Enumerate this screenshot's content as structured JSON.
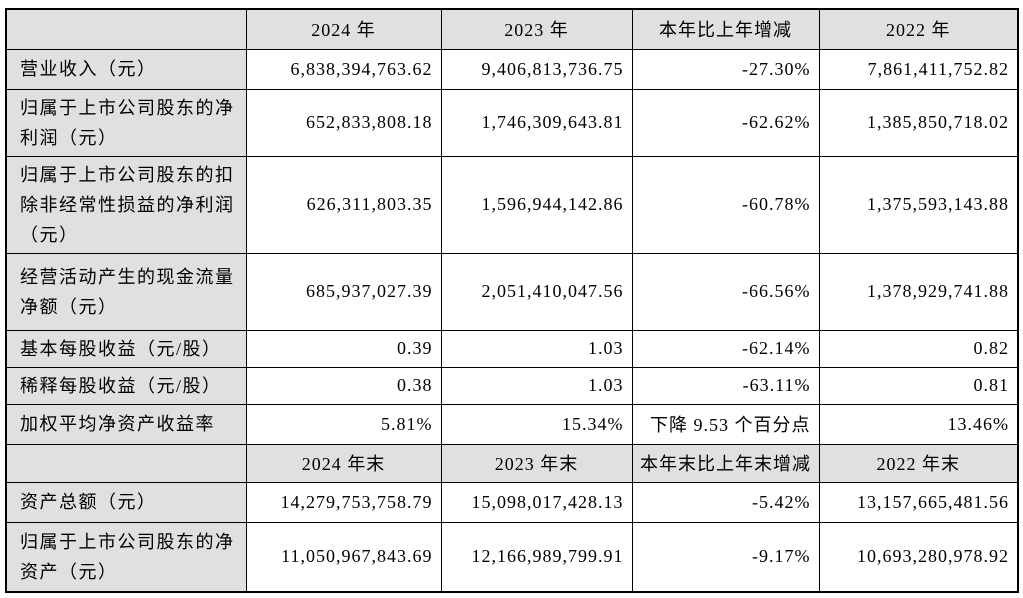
{
  "colors": {
    "header_background": "#e0e0e0",
    "label_column_background": "#e0e0e0",
    "border": "#000000",
    "text": "#000000",
    "page_background": "#ffffff"
  },
  "table": {
    "annual": {
      "header": [
        "",
        "2024 年",
        "2023 年",
        "本年比上年增减",
        "2022 年"
      ],
      "rows": [
        [
          "营业收入（元）",
          "6,838,394,763.62",
          "9,406,813,736.75",
          "-27.30%",
          "7,861,411,752.82"
        ],
        [
          "归属于上市公司股东的净利润（元）",
          "652,833,808.18",
          "1,746,309,643.81",
          "-62.62%",
          "1,385,850,718.02"
        ],
        [
          "归属于上市公司股东的扣除非经常性损益的净利润（元）",
          "626,311,803.35",
          "1,596,944,142.86",
          "-60.78%",
          "1,375,593,143.88"
        ],
        [
          "经营活动产生的现金流量净额（元）",
          "685,937,027.39",
          "2,051,410,047.56",
          "-66.56%",
          "1,378,929,741.88"
        ],
        [
          "基本每股收益（元/股）",
          "0.39",
          "1.03",
          "-62.14%",
          "0.82"
        ],
        [
          "稀释每股收益（元/股）",
          "0.38",
          "1.03",
          "-63.11%",
          "0.81"
        ],
        [
          "加权平均净资产收益率",
          "5.81%",
          "15.34%",
          "下降 9.53 个百分点",
          "13.46%"
        ]
      ]
    },
    "eoy": {
      "header": [
        "",
        "2024 年末",
        "2023 年末",
        "本年末比上年末增减",
        "2022 年末"
      ],
      "rows": [
        [
          "资产总额（元）",
          "14,279,753,758.79",
          "15,098,017,428.13",
          "-5.42%",
          "13,157,665,481.56"
        ],
        [
          "归属于上市公司股东的净资产（元）",
          "11,050,967,843.69",
          "12,166,989,799.91",
          "-9.17%",
          "10,693,280,978.92"
        ]
      ]
    }
  }
}
